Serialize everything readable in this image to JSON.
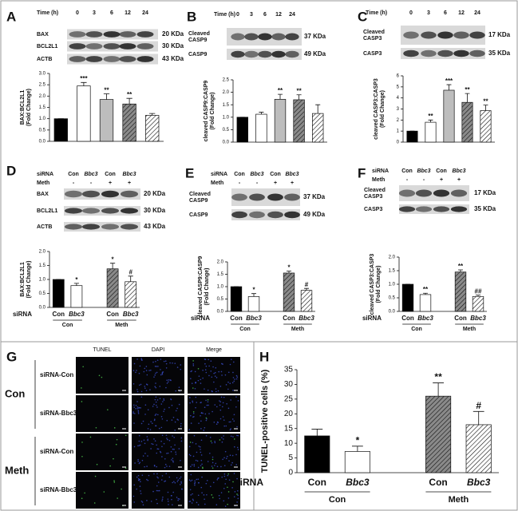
{
  "chart_data": [
    {
      "type": "bar",
      "panel": "A",
      "y_label": [
        "BAX:BCL2L1",
        "(Fold Change)"
      ],
      "values": [
        1.0,
        2.45,
        1.85,
        1.65,
        1.15
      ],
      "errors": [
        0,
        0.15,
        0.25,
        0.25,
        0.08
      ],
      "annotations": [
        null,
        "***",
        "**",
        "**",
        null
      ],
      "colors": [
        "#000000",
        "#ffffff",
        "#bdbdbd",
        "#8a8a8a",
        "#ffffff"
      ],
      "hatch": [
        false,
        false,
        false,
        true,
        true
      ],
      "ylim": [
        0,
        3.0
      ],
      "yticks": [
        {
          "value": 0,
          "label": "0.0"
        },
        0.5,
        {
          "value": 1,
          "label": "1.0"
        },
        1.5,
        {
          "value": 2,
          "label": "2.0"
        },
        2.5,
        {
          "value": 3,
          "label": "3.0"
        }
      ],
      "blot": {
        "header": [
          {
            "label": "Time (h)",
            "lanes": [
              0,
              3,
              6,
              12,
              24
            ]
          }
        ],
        "rows": [
          {
            "name": [
              "BAX"
            ],
            "size": "20 KDa"
          },
          {
            "name": [
              "BCL2L1"
            ],
            "size": "30 KDa"
          },
          {
            "name": [
              "ACTB"
            ],
            "size": "43 KDa"
          }
        ]
      }
    },
    {
      "type": "bar",
      "panel": "B",
      "y_label": [
        "cleaved CASP9:CASP9",
        "(Fold Change)"
      ],
      "values": [
        1.0,
        1.12,
        1.72,
        1.7,
        1.15
      ],
      "errors": [
        0,
        0.08,
        0.2,
        0.2,
        0.35
      ],
      "annotations": [
        null,
        null,
        "**",
        "**",
        null
      ],
      "colors": [
        "#000000",
        "#ffffff",
        "#bdbdbd",
        "#8a8a8a",
        "#ffffff"
      ],
      "hatch": [
        false,
        false,
        false,
        true,
        true
      ],
      "ylim": [
        0,
        2.5
      ],
      "yticks": [
        {
          "value": 0,
          "label": "0.0"
        },
        0.5,
        {
          "value": 1,
          "label": "1.0"
        },
        1.5,
        {
          "value": 2,
          "label": "2.0"
        },
        2.5
      ],
      "blot": {
        "header": [
          {
            "label": "Time (h)",
            "lanes": [
              0,
              3,
              6,
              12,
              24
            ]
          }
        ],
        "rows": [
          {
            "name": [
              "Cleaved",
              "CASP9"
            ],
            "size": "37 KDa"
          },
          {
            "name": [
              "CASP9"
            ],
            "size": "49 KDa"
          }
        ]
      }
    },
    {
      "type": "bar",
      "panel": "C",
      "y_label": [
        "cleaved CASP3:CASP3",
        "(Fold Change)"
      ],
      "values": [
        1.0,
        1.8,
        4.7,
        3.6,
        2.85
      ],
      "errors": [
        0,
        0.2,
        0.5,
        0.8,
        0.5
      ],
      "annotations": [
        null,
        "**",
        "***",
        "**",
        "**"
      ],
      "colors": [
        "#000000",
        "#ffffff",
        "#bdbdbd",
        "#8a8a8a",
        "#ffffff"
      ],
      "hatch": [
        false,
        false,
        false,
        true,
        true
      ],
      "ylim": [
        0,
        6
      ],
      "yticks": [
        0,
        1,
        2,
        3,
        4,
        5,
        6
      ],
      "blot": {
        "header": [
          {
            "label": "Time (h)",
            "lanes": [
              0,
              3,
              6,
              12,
              24
            ]
          }
        ],
        "rows": [
          {
            "name": [
              "Cleaved",
              "CASP3"
            ],
            "size": "17 KDa"
          },
          {
            "name": [
              "CASP3"
            ],
            "size": "35 KDa"
          }
        ]
      }
    },
    {
      "type": "bar",
      "panel": "D",
      "y_label": [
        "BAX:BCL2L1",
        "(Fold Change)"
      ],
      "x_title": "siRNA",
      "categories": [
        "Con",
        "Bbc3",
        "Con",
        "Bbc3"
      ],
      "group_labels": [
        "Con",
        "Meth"
      ],
      "values": [
        1.0,
        0.78,
        1.38,
        0.92
      ],
      "errors": [
        0,
        0.08,
        0.2,
        0.2
      ],
      "annotations": [
        null,
        "*",
        "*",
        "#"
      ],
      "colors": [
        "#000000",
        "#ffffff",
        "#8a8a8a",
        "#ffffff"
      ],
      "hatch": [
        false,
        false,
        true,
        true
      ],
      "ylim": [
        0,
        2.0
      ],
      "yticks": [
        {
          "value": 0,
          "label": "0.0"
        },
        0.5,
        {
          "value": 1,
          "label": "1.0"
        },
        1.5,
        {
          "value": 2,
          "label": "2.0"
        }
      ],
      "blot": {
        "header": [
          {
            "label": "siRNA",
            "lanes": [
              "Con",
              "Bbc3",
              "Con",
              "Bbc3"
            ]
          },
          {
            "label": "Meth",
            "lanes": [
              "-",
              "-",
              "+",
              "+"
            ]
          }
        ],
        "rows": [
          {
            "name": [
              "BAX"
            ],
            "size": "20 KDa"
          },
          {
            "name": [
              "BCL2L1"
            ],
            "size": "30 KDa"
          },
          {
            "name": [
              "ACTB"
            ],
            "size": "43 KDa"
          }
        ]
      }
    },
    {
      "type": "bar",
      "panel": "E",
      "y_label": [
        "cleaved CASP9:CASP9",
        "(Fold Change)"
      ],
      "x_title": "siRNA",
      "categories": [
        "Con",
        "Bbc3",
        "Con",
        "Bbc3"
      ],
      "group_labels": [
        "Con",
        "Meth"
      ],
      "values": [
        1.0,
        0.6,
        1.55,
        0.85
      ],
      "errors": [
        0,
        0.12,
        0.08,
        0.08
      ],
      "annotations": [
        null,
        "*",
        "*",
        "#"
      ],
      "colors": [
        "#000000",
        "#ffffff",
        "#8a8a8a",
        "#ffffff"
      ],
      "hatch": [
        false,
        false,
        true,
        true
      ],
      "ylim": [
        0,
        2.0
      ],
      "yticks": [
        {
          "value": 0,
          "label": "0.0"
        },
        0.5,
        {
          "value": 1,
          "label": "1.0"
        },
        1.5,
        {
          "value": 2,
          "label": "2.0"
        }
      ],
      "blot": {
        "header": [
          {
            "label": "siRNA",
            "lanes": [
              "Con",
              "Bbc3",
              "Con",
              "Bbc3"
            ]
          },
          {
            "label": "Meth",
            "lanes": [
              "-",
              "-",
              "+",
              "+"
            ]
          }
        ],
        "rows": [
          {
            "name": [
              "Cleaved",
              "CASP9"
            ],
            "size": "37 KDa"
          },
          {
            "name": [
              "CASP9"
            ],
            "size": "49 KDa"
          }
        ]
      }
    },
    {
      "type": "bar",
      "panel": "F",
      "y_label": [
        "cleaved CASP3:CASP3",
        "(Fold Change)"
      ],
      "x_title": "siRNA",
      "categories": [
        "Con",
        "Bbc3",
        "Con",
        "Bbc3"
      ],
      "group_labels": [
        "Con",
        "Meth"
      ],
      "values": [
        1.0,
        0.62,
        1.45,
        0.55
      ],
      "errors": [
        0,
        0.05,
        0.08,
        0.05
      ],
      "annotations": [
        null,
        "**",
        "**",
        "##"
      ],
      "colors": [
        "#000000",
        "#ffffff",
        "#8a8a8a",
        "#ffffff"
      ],
      "hatch": [
        false,
        false,
        true,
        true
      ],
      "ylim": [
        0,
        2.0
      ],
      "yticks": [
        {
          "value": 0,
          "label": "0.0"
        },
        0.5,
        {
          "value": 1,
          "label": "1.0"
        },
        1.5,
        {
          "value": 2,
          "label": "2.0"
        }
      ],
      "blot": {
        "header": [
          {
            "label": "siRNA",
            "lanes": [
              "Con",
              "Bbc3",
              "Con",
              "Bbc3"
            ]
          },
          {
            "label": "Meth",
            "lanes": [
              "-",
              "-",
              "+",
              "+"
            ]
          }
        ],
        "rows": [
          {
            "name": [
              "Cleaved",
              "CASP3"
            ],
            "size": "17 KDa"
          },
          {
            "name": [
              "CASP3"
            ],
            "size": "35 KDa"
          }
        ]
      }
    },
    {
      "type": "bar",
      "panel": "H",
      "y_label": [
        "TUNEL-positive cells (%)"
      ],
      "x_title": "siRNA",
      "categories": [
        "Con",
        "Bbc3",
        "Con",
        "Bbc3"
      ],
      "group_labels": [
        "Con",
        "Meth"
      ],
      "values": [
        12.5,
        7.2,
        26,
        16.3
      ],
      "errors": [
        2.3,
        1.8,
        4.5,
        4.5
      ],
      "annotations": [
        null,
        "*",
        "**",
        "#"
      ],
      "colors": [
        "#000000",
        "#ffffff",
        "#8a8a8a",
        "#ffffff"
      ],
      "hatch": [
        false,
        false,
        true,
        true
      ],
      "ylim": [
        0,
        35
      ],
      "yticks": [
        0,
        5,
        10,
        15,
        20,
        25,
        30,
        35
      ]
    }
  ],
  "tunel_panel": {
    "panel": "G",
    "columns": [
      "TUNEL",
      "DAPI",
      "Merge"
    ],
    "groups": [
      {
        "name": "Con",
        "rows": [
          "siRNA-Con",
          "siRNA-Bbc3"
        ]
      },
      {
        "name": "Meth",
        "rows": [
          "siRNA-Con",
          "siRNA-Bbc3"
        ]
      }
    ]
  }
}
